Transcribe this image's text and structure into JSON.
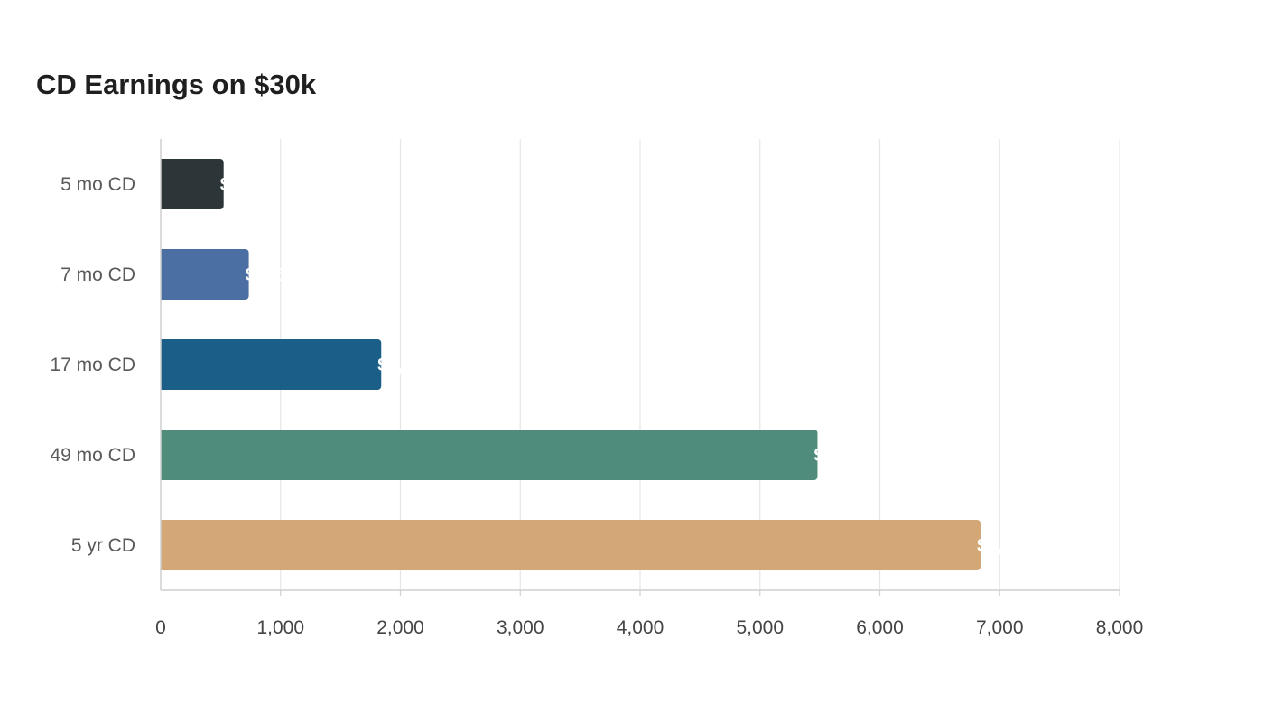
{
  "chart_data": {
    "type": "bar",
    "orientation": "horizontal",
    "title": "CD Earnings on $30k",
    "xlabel": "",
    "ylabel": "",
    "categories": [
      "5 mo CD",
      "7 mo CD",
      "17 mo CD",
      "49 mo CD",
      "5 yr CD"
    ],
    "values": [
      525,
      735,
      1840,
      5480,
      6840
    ],
    "colors": [
      "#2c3537",
      "#4b6fa3",
      "#1b5f89",
      "#4f8c7c",
      "#d4a776"
    ],
    "xlim": [
      0,
      8000
    ],
    "xticks": [
      0,
      1000,
      2000,
      3000,
      4000,
      5000,
      6000,
      7000,
      8000
    ],
    "xtick_labels": [
      "0",
      "1,000",
      "2,000",
      "3,000",
      "4,000",
      "5,000",
      "6,000",
      "7,000",
      "8,000"
    ],
    "data_label_prefix": "$",
    "grid": true,
    "legend": "none"
  }
}
